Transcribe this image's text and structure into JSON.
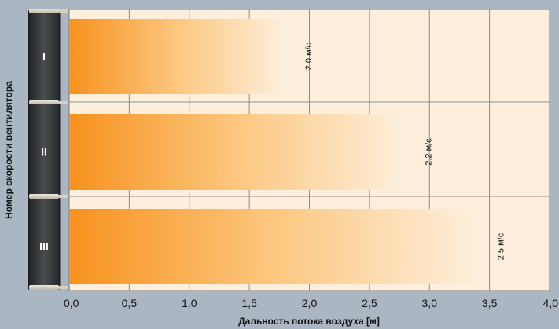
{
  "chart_data": {
    "type": "bar",
    "orientation": "horizontal",
    "categories": [
      "I",
      "II",
      "III"
    ],
    "values": [
      1.8,
      2.8,
      3.4
    ],
    "speed_labels": [
      "2,0 м/с",
      "2,2 м/с",
      "2,5 м/с"
    ],
    "xlabel": "Дальность потока воздуха [м]",
    "ylabel": "Номер скорости вентилятора",
    "xlim": [
      0,
      4
    ],
    "xticks": [
      "0,0",
      "0,5",
      "1,0",
      "1,5",
      "2,0",
      "2,5",
      "3,0",
      "3,5",
      "4,0"
    ],
    "grid": true,
    "colors": {
      "page_bg": "#aab6c1",
      "plot_bg": "#fdefdc",
      "bar_start": "#f7921e",
      "bar_end": "#fdefdc",
      "grid": "#8c8c8c",
      "unit": "#3b3d3f"
    }
  }
}
